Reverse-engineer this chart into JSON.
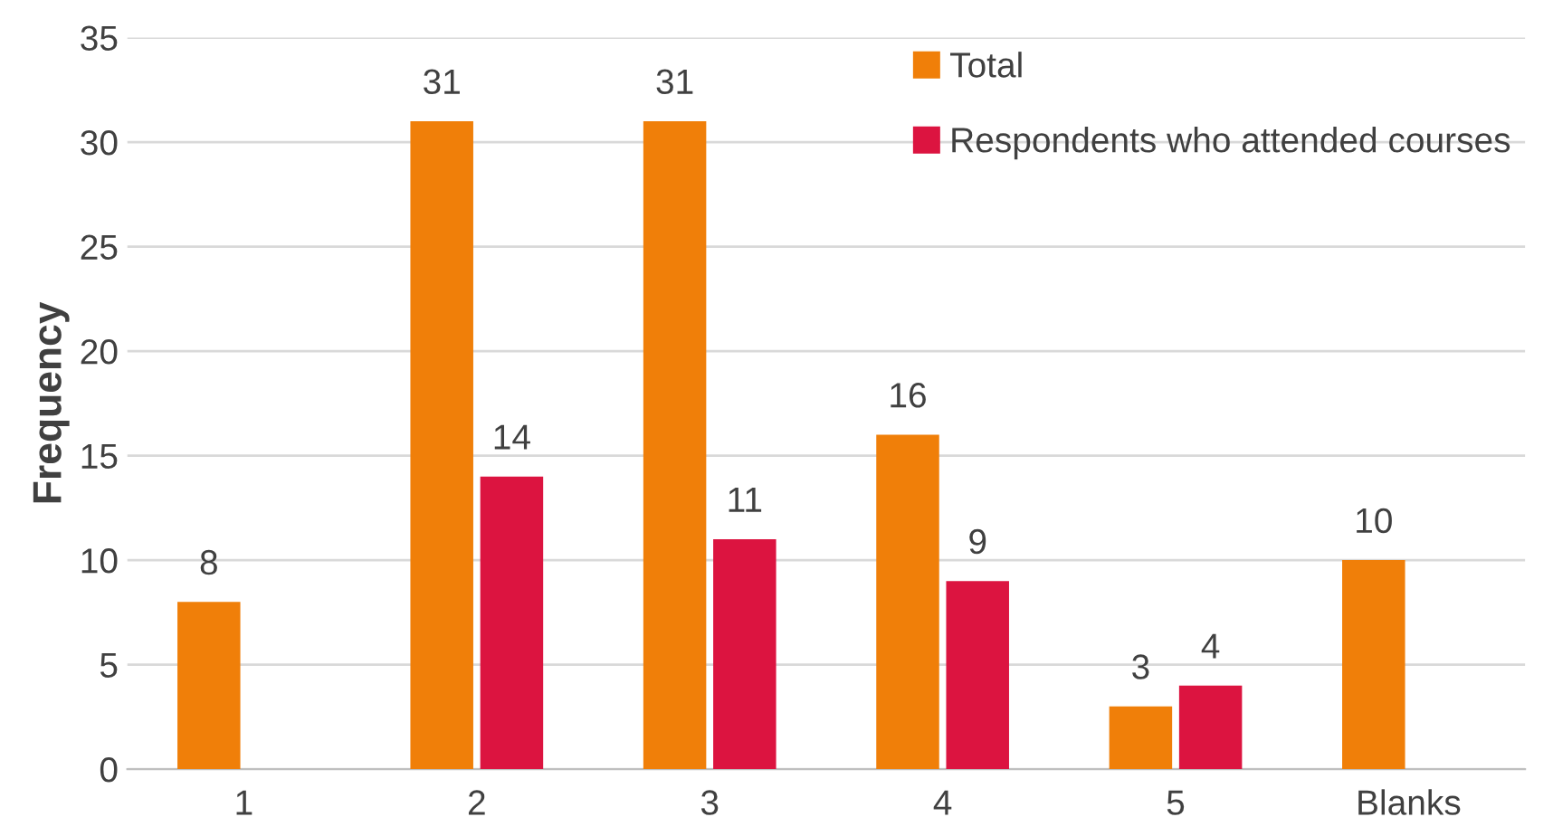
{
  "chart_data": {
    "type": "bar",
    "ylabel": "Frequency",
    "categories": [
      "1",
      "2",
      "3",
      "4",
      "5",
      "Blanks"
    ],
    "series": [
      {
        "name": "Total",
        "color": "#f07f09",
        "values": [
          8,
          31,
          31,
          16,
          3,
          10
        ]
      },
      {
        "name": "Respondents who attended courses",
        "color": "#dc1440",
        "values": [
          null,
          14,
          11,
          9,
          4,
          null
        ]
      }
    ],
    "ylim": [
      0,
      35
    ],
    "yticks": [
      0,
      5,
      10,
      15,
      20,
      25,
      30,
      35
    ],
    "grid": "y",
    "legend": "top right",
    "data_labels": true
  }
}
